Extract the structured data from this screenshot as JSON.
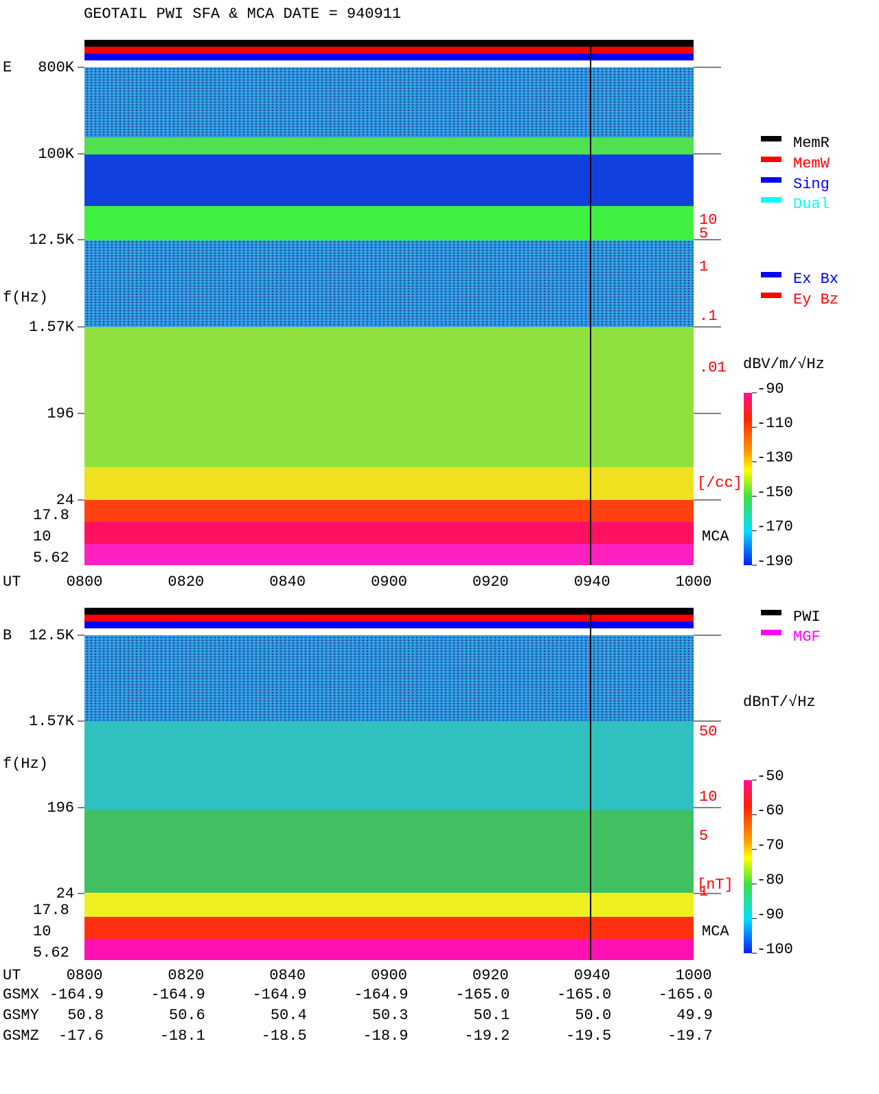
{
  "title": "GEOTAIL  PWI SFA & MCA   DATE = 940911",
  "panels": [
    {
      "label": "E",
      "y_title": "f(Hz)",
      "freq_ticks": [
        "800K",
        "100K",
        "12.5K",
        "1.57K",
        "196",
        "24"
      ],
      "mca_ticks": [
        "17.8",
        "10",
        "5.62"
      ],
      "mca_label": "MCA",
      "side_ticks": [
        "10",
        "5",
        "1",
        ".1",
        ".01"
      ],
      "side_unit": "[/cc]",
      "colorbar_title": "dBV/m/√Hz",
      "colorbar_ticks": [
        "-90",
        "-110",
        "-130",
        "-150",
        "-170",
        "-190"
      ],
      "legend": [
        {
          "name": "MemR",
          "color": "#000000"
        },
        {
          "name": "MemW",
          "color": "#ff0000"
        },
        {
          "name": "Sing",
          "color": "#0000ff"
        },
        {
          "name": "Dual",
          "color": "#00ffff"
        },
        {
          "name": "Ex Bx",
          "color": "#0000ff"
        },
        {
          "name": "Ey Bz",
          "color": "#ff0000"
        }
      ]
    },
    {
      "label": "B",
      "y_title": "f(Hz)",
      "freq_ticks": [
        "12.5K",
        "1.57K",
        "196",
        "24"
      ],
      "mca_ticks": [
        "17.8",
        "10",
        "5.62"
      ],
      "mca_label": "MCA",
      "side_ticks": [
        "50",
        "10",
        "5",
        "1"
      ],
      "side_unit": "[nT]",
      "colorbar_title": "dBnT/√Hz",
      "colorbar_ticks": [
        "-50",
        "-60",
        "-70",
        "-80",
        "-90",
        "-100"
      ],
      "legend": [
        {
          "name": "PWI",
          "color": "#000000"
        },
        {
          "name": "MGF",
          "color": "#ff00ff"
        }
      ]
    }
  ],
  "time_axis": {
    "label": "UT",
    "ticks": [
      "0800",
      "0820",
      "0840",
      "0900",
      "0920",
      "0940",
      "1000"
    ]
  },
  "orbit": [
    {
      "label": "GSMX",
      "values": [
        "-164.9",
        "-164.9",
        "-164.9",
        "-164.9",
        "-165.0",
        "-165.0",
        "-165.0"
      ]
    },
    {
      "label": "GSMY",
      "values": [
        "50.8",
        "50.6",
        "50.4",
        "50.3",
        "50.1",
        "50.0",
        "49.9"
      ]
    },
    {
      "label": "GSMZ",
      "values": [
        "-17.6",
        "-18.1",
        "-18.5",
        "-18.9",
        "-19.2",
        "-19.5",
        "-19.7"
      ]
    }
  ]
}
